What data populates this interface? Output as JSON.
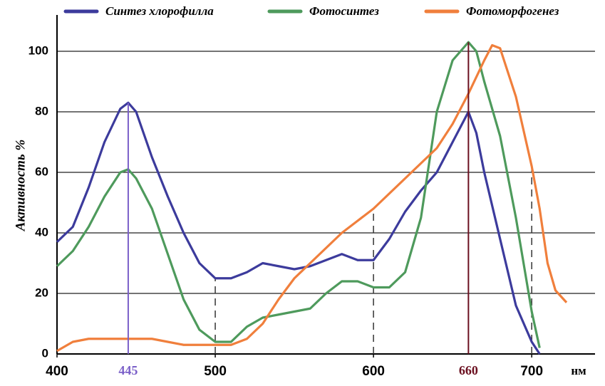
{
  "chart_data": {
    "type": "line",
    "y_label": "Активность %",
    "x_unit": "нм",
    "xlim": [
      400,
      740
    ],
    "ylim": [
      0,
      112
    ],
    "xticks": [
      400,
      500,
      600,
      700
    ],
    "yticks": [
      0,
      20,
      40,
      60,
      80,
      100
    ],
    "grid": true,
    "legend": "top",
    "highlight_lines": [
      {
        "x": 445,
        "y": 83,
        "color": "#7a5fc8"
      },
      {
        "x": 660,
        "y": 103,
        "color": "#6b1020"
      }
    ],
    "dashed_lines": [
      {
        "x": 500,
        "y": 25
      },
      {
        "x": 600,
        "y": 48
      },
      {
        "x": 700,
        "y": 62
      }
    ],
    "series": [
      {
        "name": "Синтез хлорофилла",
        "color": "#3c3b9c",
        "x": [
          400,
          410,
          420,
          430,
          440,
          445,
          450,
          460,
          470,
          480,
          490,
          500,
          510,
          520,
          530,
          540,
          550,
          560,
          570,
          580,
          590,
          600,
          610,
          620,
          630,
          640,
          650,
          660,
          665,
          670,
          680,
          690,
          700,
          705
        ],
        "values": [
          37,
          42,
          55,
          70,
          81,
          83,
          80,
          65,
          52,
          40,
          30,
          25,
          25,
          27,
          30,
          29,
          28,
          29,
          31,
          33,
          31,
          31,
          38,
          47,
          54,
          60,
          70,
          80,
          73,
          60,
          38,
          16,
          4,
          0
        ]
      },
      {
        "name": "Фотосинтез",
        "color": "#4e9a5c",
        "x": [
          400,
          410,
          420,
          430,
          440,
          445,
          450,
          460,
          470,
          480,
          490,
          500,
          510,
          520,
          530,
          540,
          550,
          560,
          570,
          580,
          590,
          600,
          610,
          620,
          630,
          640,
          650,
          660,
          665,
          670,
          680,
          690,
          700,
          705
        ],
        "values": [
          29,
          34,
          42,
          52,
          60,
          61,
          58,
          48,
          33,
          18,
          8,
          4,
          4,
          9,
          12,
          13,
          14,
          15,
          20,
          24,
          24,
          22,
          22,
          27,
          45,
          80,
          97,
          103,
          100,
          90,
          72,
          45,
          14,
          2
        ]
      },
      {
        "name": "Фотоморфогенез",
        "color": "#f07f3c",
        "x": [
          400,
          410,
          420,
          430,
          440,
          450,
          460,
          470,
          480,
          490,
          500,
          510,
          520,
          530,
          540,
          550,
          560,
          570,
          580,
          590,
          600,
          610,
          620,
          630,
          640,
          650,
          660,
          670,
          675,
          680,
          690,
          700,
          705,
          710,
          715,
          722
        ],
        "values": [
          1,
          4,
          5,
          5,
          5,
          5,
          5,
          4,
          3,
          3,
          3,
          3,
          5,
          10,
          18,
          25,
          30,
          35,
          40,
          44,
          48,
          53,
          58,
          63,
          68,
          76,
          86,
          97,
          102,
          101,
          85,
          62,
          48,
          30,
          21,
          17
        ]
      }
    ]
  }
}
